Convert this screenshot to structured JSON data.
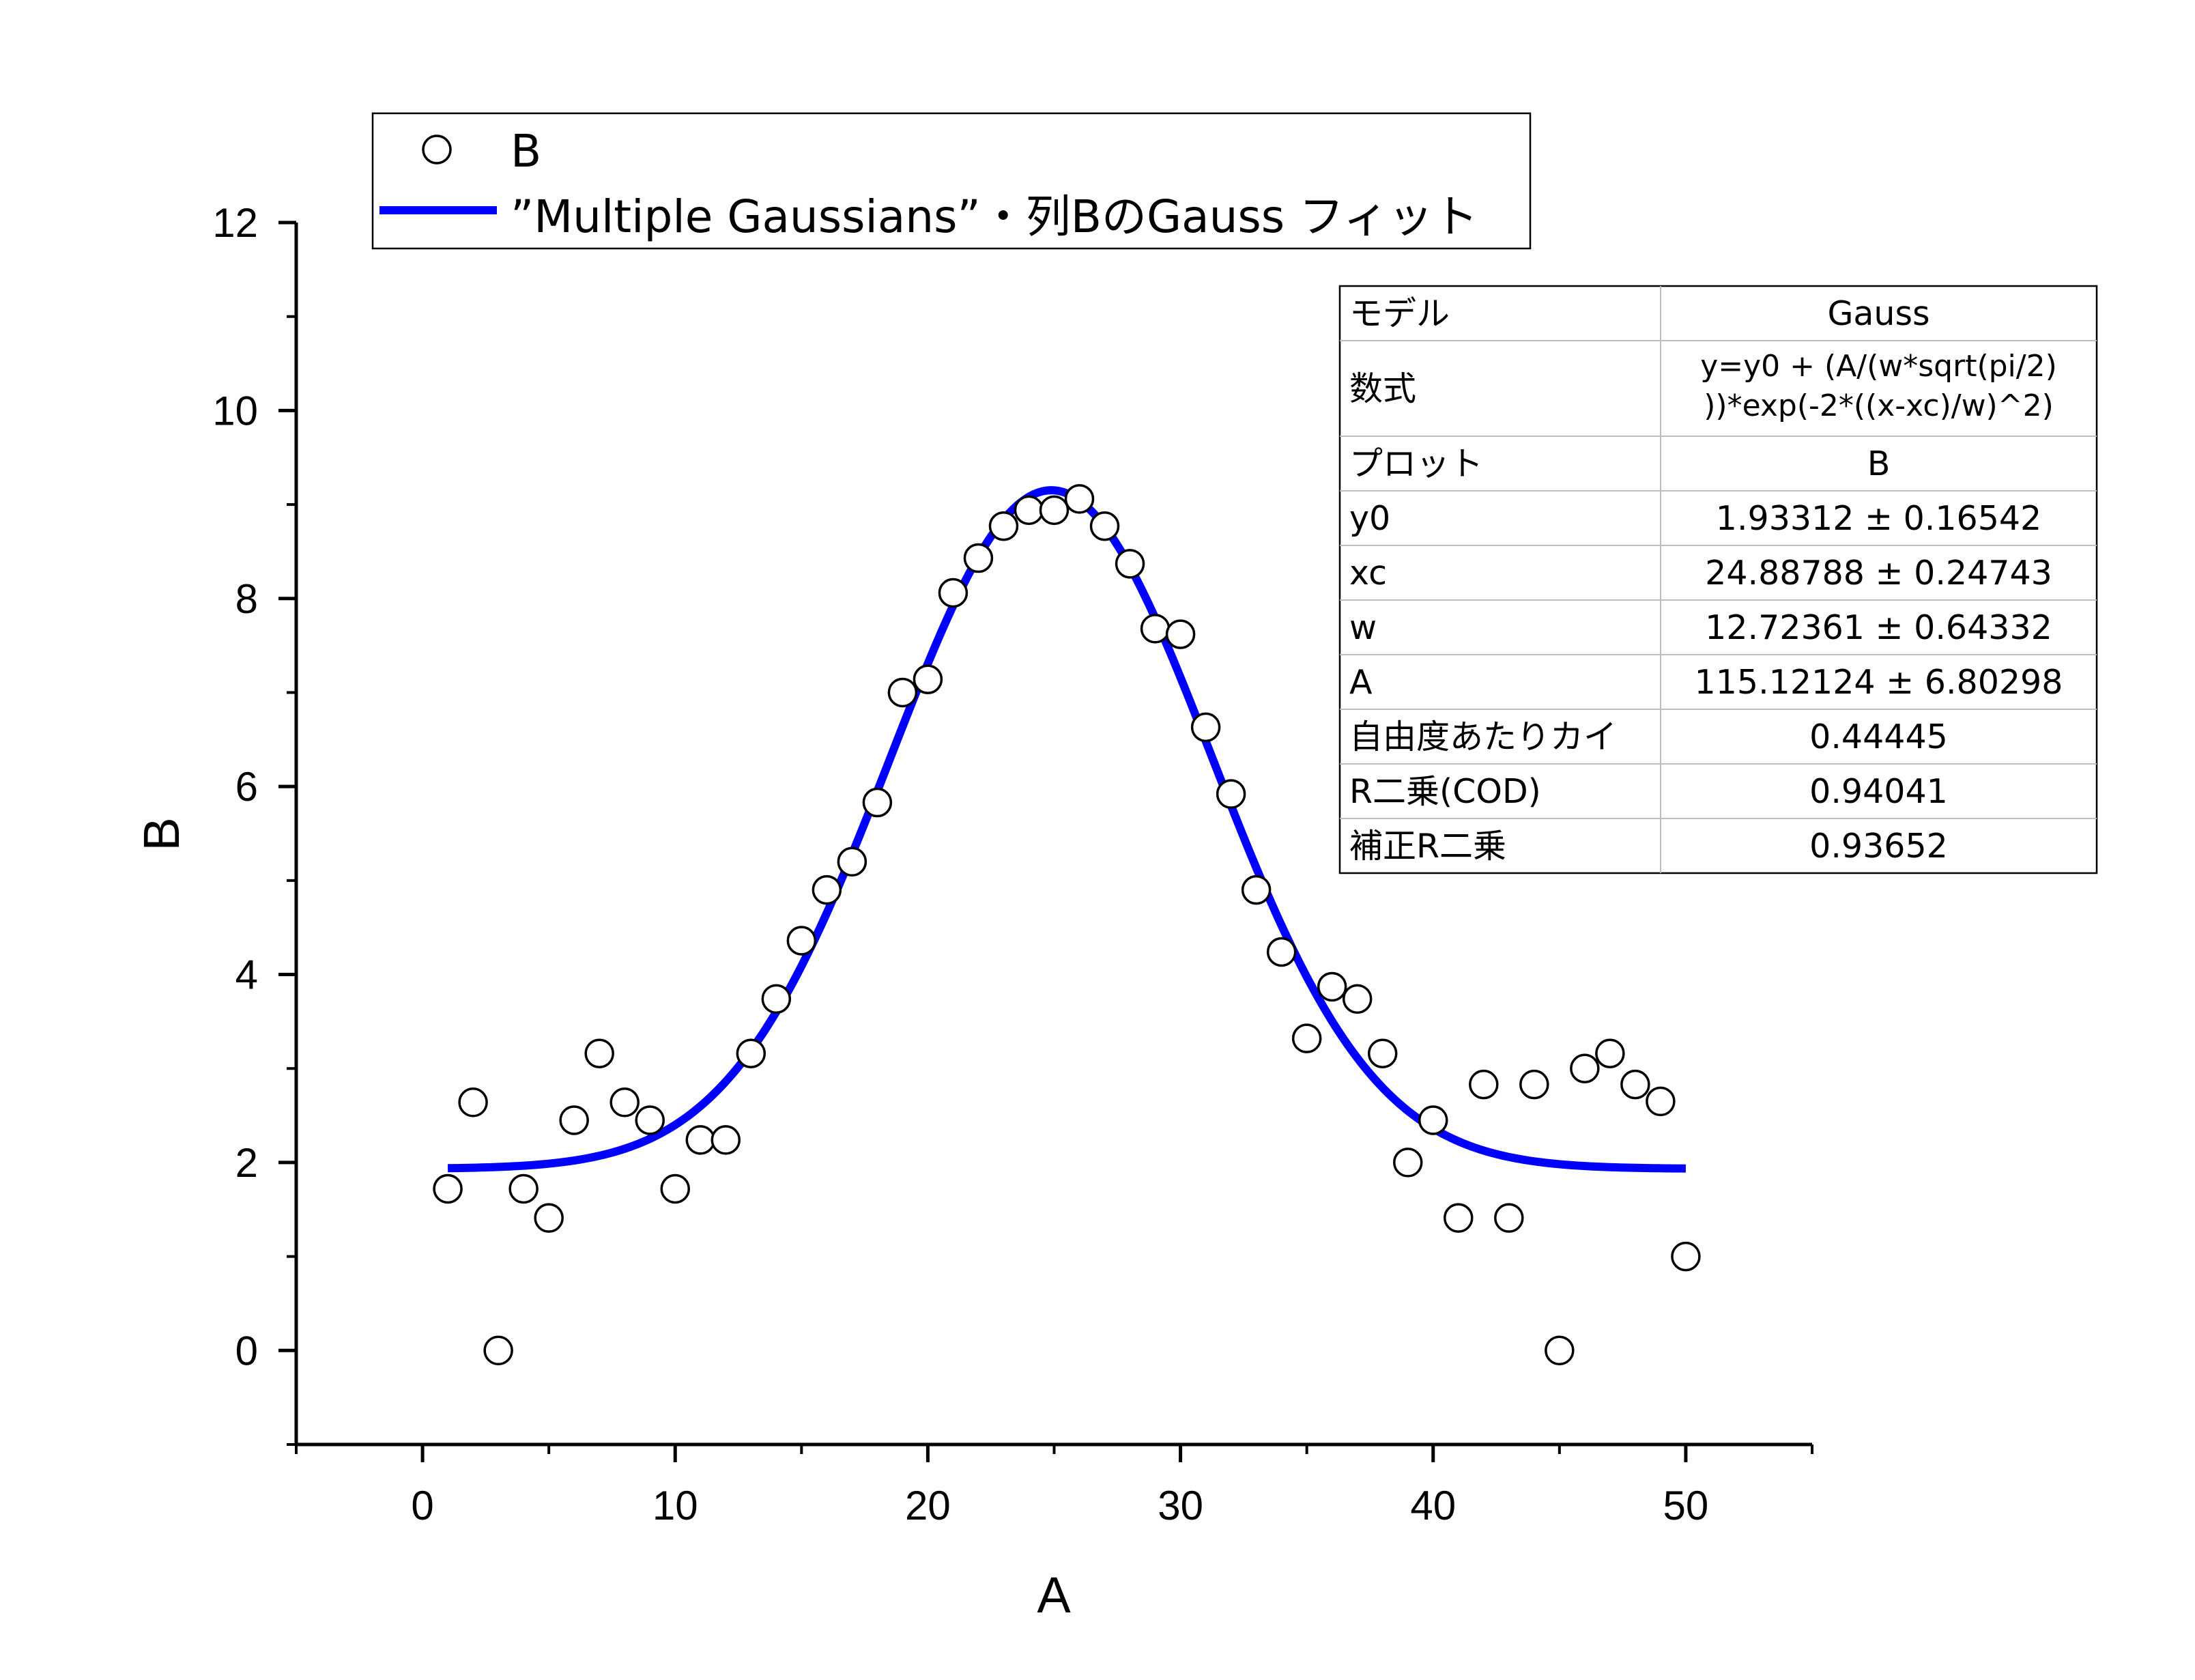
{
  "chart_data": {
    "type": "scatter",
    "xlabel": "A",
    "ylabel": "B",
    "xlim": [
      -5,
      55
    ],
    "ylim": [
      -1,
      12
    ],
    "x_ticks": [
      0,
      10,
      20,
      30,
      40,
      50
    ],
    "y_ticks": [
      0,
      2,
      4,
      6,
      8,
      10,
      12
    ],
    "grid": false,
    "legend_position": "top-left",
    "series": [
      {
        "name": "B",
        "kind": "scatter",
        "marker": "open-circle",
        "color": "#000000",
        "x": [
          1,
          2,
          3,
          4,
          5,
          6,
          7,
          8,
          9,
          10,
          11,
          12,
          13,
          14,
          15,
          16,
          17,
          18,
          19,
          20,
          21,
          22,
          23,
          24,
          25,
          26,
          27,
          28,
          29,
          30,
          31,
          32,
          33,
          34,
          35,
          36,
          37,
          38,
          39,
          40,
          41,
          42,
          43,
          44,
          45,
          46,
          47,
          48,
          49,
          50
        ],
        "y": [
          1.72,
          2.64,
          0,
          1.72,
          1.41,
          2.45,
          3.16,
          2.64,
          2.45,
          1.72,
          2.24,
          2.24,
          3.16,
          3.74,
          4.36,
          4.9,
          5.2,
          5.83,
          7.0,
          7.14,
          8.06,
          8.43,
          8.77,
          8.94,
          8.94,
          9.06,
          8.77,
          8.37,
          7.68,
          7.62,
          6.63,
          5.92,
          4.9,
          4.24,
          3.32,
          3.87,
          3.74,
          3.16,
          2.0,
          2.45,
          1.41,
          2.83,
          1.41,
          2.83,
          0,
          3.0,
          3.16,
          2.83,
          2.65,
          1.0
        ]
      },
      {
        "name": "”Multiple Gaussians”・列BのGauss フィット",
        "kind": "fit-line",
        "color": "#0000ff",
        "model": "gauss",
        "x_range": [
          1,
          50
        ],
        "params": {
          "y0": 1.93312,
          "xc": 24.88788,
          "w": 12.72361,
          "A": 115.12124
        }
      }
    ]
  },
  "results_table": {
    "rows": [
      {
        "label": "モデル",
        "value": "Gauss"
      },
      {
        "label": "数式",
        "value_lines": [
          "y=y0 + (A/(w*sqrt(pi/2)",
          "))*exp(-2*((x-xc)/w)^2)"
        ]
      },
      {
        "label": "プロット",
        "value": "B"
      },
      {
        "label": "y0",
        "value": "1.93312 ± 0.16542"
      },
      {
        "label": "xc",
        "value": "24.88788 ± 0.24743"
      },
      {
        "label": "w",
        "value": "12.72361 ± 0.64332"
      },
      {
        "label": "A",
        "value": "115.12124 ± 6.80298"
      },
      {
        "label": "自由度あたりカイ",
        "value": "0.44445"
      },
      {
        "label": "R二乗(COD)",
        "value": "0.94041"
      },
      {
        "label": "補正R二乗",
        "value": "0.93652"
      }
    ]
  }
}
